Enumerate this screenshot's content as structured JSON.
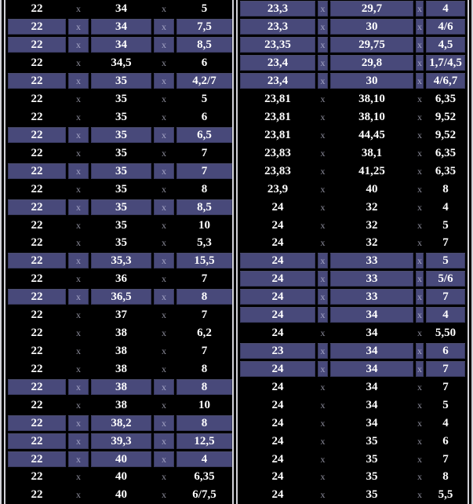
{
  "separator": "x",
  "colors": {
    "background": "#000000",
    "highlight": "#48497a",
    "text": "#ffffff",
    "separator_text": "#a6a6c6",
    "table_border": "#d2d2d8"
  },
  "tables": [
    {
      "name": "left-size-table",
      "rows": [
        {
          "values": [
            "22",
            "34",
            "5"
          ],
          "highlighted": false
        },
        {
          "values": [
            "22",
            "34",
            "7,5"
          ],
          "highlighted": true
        },
        {
          "values": [
            "22",
            "34",
            "8,5"
          ],
          "highlighted": true
        },
        {
          "values": [
            "22",
            "34,5",
            "6"
          ],
          "highlighted": false
        },
        {
          "values": [
            "22",
            "35",
            "4,2/7"
          ],
          "highlighted": true
        },
        {
          "values": [
            "22",
            "35",
            "5"
          ],
          "highlighted": false
        },
        {
          "values": [
            "22",
            "35",
            "6"
          ],
          "highlighted": false
        },
        {
          "values": [
            "22",
            "35",
            "6,5"
          ],
          "highlighted": true
        },
        {
          "values": [
            "22",
            "35",
            "7"
          ],
          "highlighted": false
        },
        {
          "values": [
            "22",
            "35",
            "7"
          ],
          "highlighted": true
        },
        {
          "values": [
            "22",
            "35",
            "8"
          ],
          "highlighted": false
        },
        {
          "values": [
            "22",
            "35",
            "8,5"
          ],
          "highlighted": true
        },
        {
          "values": [
            "22",
            "35",
            "10"
          ],
          "highlighted": false
        },
        {
          "values": [
            "22",
            "35",
            "5,3"
          ],
          "highlighted": false
        },
        {
          "values": [
            "22",
            "35,3",
            "15,5"
          ],
          "highlighted": true
        },
        {
          "values": [
            "22",
            "36",
            "7"
          ],
          "highlighted": false
        },
        {
          "values": [
            "22",
            "36,5",
            "8"
          ],
          "highlighted": true
        },
        {
          "values": [
            "22",
            "37",
            "7"
          ],
          "highlighted": false
        },
        {
          "values": [
            "22",
            "38",
            "6,2"
          ],
          "highlighted": false
        },
        {
          "values": [
            "22",
            "38",
            "7"
          ],
          "highlighted": false
        },
        {
          "values": [
            "22",
            "38",
            "8"
          ],
          "highlighted": false
        },
        {
          "values": [
            "22",
            "38",
            "8"
          ],
          "highlighted": true
        },
        {
          "values": [
            "22",
            "38",
            "10"
          ],
          "highlighted": false
        },
        {
          "values": [
            "22",
            "38,2",
            "8"
          ],
          "highlighted": true
        },
        {
          "values": [
            "22",
            "39,3",
            "12,5"
          ],
          "highlighted": true
        },
        {
          "values": [
            "22",
            "40",
            "4"
          ],
          "highlighted": true
        },
        {
          "values": [
            "22",
            "40",
            "6,35"
          ],
          "highlighted": false
        },
        {
          "values": [
            "22",
            "40",
            "6/7,5"
          ],
          "highlighted": false
        }
      ]
    },
    {
      "name": "right-size-table",
      "rows": [
        {
          "values": [
            "23,3",
            "29,7",
            "4"
          ],
          "highlighted": true
        },
        {
          "values": [
            "23,3",
            "30",
            "4/6"
          ],
          "highlighted": true
        },
        {
          "values": [
            "23,35",
            "29,75",
            "4,5"
          ],
          "highlighted": true
        },
        {
          "values": [
            "23,4",
            "29,8",
            "1,7/4,5"
          ],
          "highlighted": true
        },
        {
          "values": [
            "23,4",
            "30",
            "4/6,7"
          ],
          "highlighted": true
        },
        {
          "values": [
            "23,81",
            "38,10",
            "6,35"
          ],
          "highlighted": false
        },
        {
          "values": [
            "23,81",
            "38,10",
            "9,52"
          ],
          "highlighted": false
        },
        {
          "values": [
            "23,81",
            "44,45",
            "9,52"
          ],
          "highlighted": false
        },
        {
          "values": [
            "23,83",
            "38,1",
            "6,35"
          ],
          "highlighted": false
        },
        {
          "values": [
            "23,83",
            "41,25",
            "6,35"
          ],
          "highlighted": false
        },
        {
          "values": [
            "23,9",
            "40",
            "8"
          ],
          "highlighted": false
        },
        {
          "values": [
            "24",
            "32",
            "4"
          ],
          "highlighted": false
        },
        {
          "values": [
            "24",
            "32",
            "5"
          ],
          "highlighted": false
        },
        {
          "values": [
            "24",
            "32",
            "7"
          ],
          "highlighted": false
        },
        {
          "values": [
            "24",
            "33",
            "5"
          ],
          "highlighted": true
        },
        {
          "values": [
            "24",
            "33",
            "5/6"
          ],
          "highlighted": true
        },
        {
          "values": [
            "24",
            "33",
            "7"
          ],
          "highlighted": true
        },
        {
          "values": [
            "24",
            "34",
            "4"
          ],
          "highlighted": true
        },
        {
          "values": [
            "24",
            "34",
            "5,50"
          ],
          "highlighted": false
        },
        {
          "values": [
            "23",
            "34",
            "6"
          ],
          "highlighted": true
        },
        {
          "values": [
            "24",
            "34",
            "7"
          ],
          "highlighted": true
        },
        {
          "values": [
            "24",
            "34",
            "7"
          ],
          "highlighted": false
        },
        {
          "values": [
            "24",
            "34",
            "5"
          ],
          "highlighted": false
        },
        {
          "values": [
            "24",
            "34",
            "4"
          ],
          "highlighted": false
        },
        {
          "values": [
            "24",
            "35",
            "6"
          ],
          "highlighted": false
        },
        {
          "values": [
            "24",
            "35",
            "7"
          ],
          "highlighted": false
        },
        {
          "values": [
            "24",
            "35",
            "8"
          ],
          "highlighted": false
        },
        {
          "values": [
            "24",
            "35",
            "5,5"
          ],
          "highlighted": false
        }
      ]
    }
  ]
}
